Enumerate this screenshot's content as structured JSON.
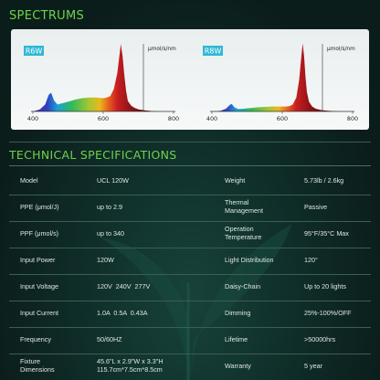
{
  "sections": {
    "spectrums_title": "SPECTRUMS",
    "tech_title": "TECHNICAL SPECIFICATIONS"
  },
  "colors": {
    "accent_green": "#6fd24a",
    "badge_cyan": "#30b8d6",
    "background": "#0c1f1d",
    "divider": "#3d5d55"
  },
  "chart_data": [
    {
      "type": "area",
      "badge": "R6W",
      "unit": "μmol/s/nm",
      "x_ticks": [
        400,
        600,
        800
      ],
      "x_tick_labels": [
        "400",
        "600",
        "800"
      ],
      "extra_tick_labels": [
        "",
        "",
        ""
      ],
      "xlim": [
        400,
        800
      ],
      "ylim": [
        0,
        1
      ],
      "x": [
        400,
        420,
        435,
        445,
        452,
        460,
        470,
        485,
        500,
        520,
        540,
        560,
        580,
        600,
        610,
        620,
        630,
        640,
        645,
        650,
        655,
        660,
        665,
        670,
        680,
        690,
        700,
        720,
        740,
        760
      ],
      "y": [
        0.0,
        0.03,
        0.1,
        0.24,
        0.27,
        0.16,
        0.1,
        0.12,
        0.14,
        0.17,
        0.19,
        0.2,
        0.2,
        0.19,
        0.2,
        0.22,
        0.32,
        0.55,
        0.76,
        0.97,
        0.8,
        0.52,
        0.3,
        0.15,
        0.08,
        0.05,
        0.03,
        0.015,
        0.005,
        0.0
      ]
    },
    {
      "type": "area",
      "badge": "R8W",
      "unit": "μmol/s/nm",
      "x_ticks": [
        400,
        600,
        800
      ],
      "x_tick_labels": [
        "400",
        "600",
        "800"
      ],
      "extra_tick_labels": [
        "",
        "",
        ""
      ],
      "xlim": [
        400,
        800
      ],
      "ylim": [
        0,
        1
      ],
      "x": [
        400,
        425,
        440,
        450,
        456,
        464,
        475,
        490,
        510,
        530,
        550,
        570,
        590,
        610,
        620,
        630,
        640,
        648,
        654,
        658,
        662,
        666,
        670,
        676,
        685,
        695,
        710,
        730,
        750,
        770
      ],
      "y": [
        0.0,
        0.01,
        0.04,
        0.09,
        0.11,
        0.06,
        0.035,
        0.04,
        0.05,
        0.06,
        0.065,
        0.07,
        0.07,
        0.07,
        0.075,
        0.1,
        0.2,
        0.45,
        0.78,
        0.98,
        0.8,
        0.5,
        0.28,
        0.14,
        0.07,
        0.04,
        0.02,
        0.01,
        0.004,
        0.0
      ]
    }
  ],
  "specs": [
    {
      "label": "Model",
      "value": "UCL 120W",
      "label2": "Weight",
      "value2": "5.73lb / 2.6kg"
    },
    {
      "label": "PPE (μmol/J)",
      "value": "up to 2.9",
      "label2": "Thermal\nManagement",
      "value2": "Passive"
    },
    {
      "label": "PPF (μmol/s)",
      "value": "up to 340",
      "label2": "Operation\nTemperature",
      "value2": "95°F/35°C Max"
    },
    {
      "label": "Input Power",
      "value": "120W",
      "label2": "Light Distribution",
      "value2": "120°"
    },
    {
      "label": "Input Voltage",
      "value": "120V  240V  277V",
      "label2": "Daisy-Chain",
      "value2": "Up to 20 lights"
    },
    {
      "label": "Input Current",
      "value": "1.0A  0.5A  0.43A",
      "label2": "Dimming",
      "value2": "25%-100%/OFF"
    },
    {
      "label": "Frequency",
      "value": "50/60HZ",
      "label2": "Lifetime",
      "value2": ">50000hrs"
    },
    {
      "label": "Fixture\nDimensions",
      "value": "45.6\"L x 2.9\"W x 3.3\"H\n115.7cm*7.5cm*8.5cm",
      "label2": "Warranty",
      "value2": "5 year"
    }
  ]
}
